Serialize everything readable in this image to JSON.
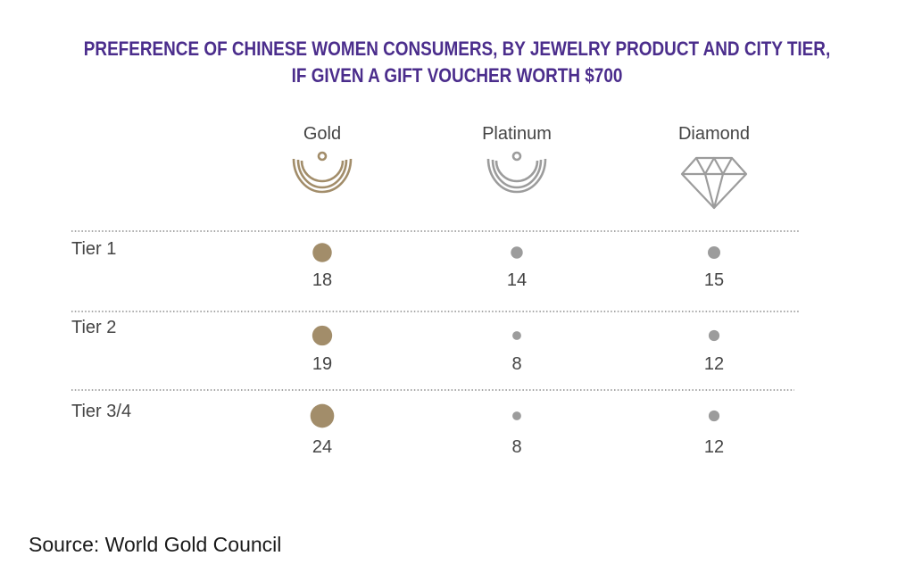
{
  "title": {
    "line1": "PREFERENCE OF CHINESE WOMEN CONSUMERS, BY JEWELRY PRODUCT AND CITY TIER,",
    "line2": "IF GIVEN A GIFT VOUCHER WORTH $700"
  },
  "source": "Source: World Gold Council",
  "colors": {
    "title": "#4b2d8c",
    "gold": "#a28d6a",
    "silver": "#9c9c9c",
    "text": "#444444"
  },
  "icons": {
    "Gold": "gold-necklace-icon",
    "Platinum": "platinum-necklace-icon",
    "Diamond": "diamond-icon"
  },
  "chart_data": {
    "type": "bubble-table",
    "title": "PREFERENCE OF CHINESE WOMEN CONSUMERS, BY JEWELRY PRODUCT AND CITY TIER, IF GIVEN A GIFT VOUCHER WORTH $700",
    "columns": [
      "Gold",
      "Platinum",
      "Diamond"
    ],
    "rows": [
      "Tier 1",
      "Tier 2",
      "Tier 3/4"
    ],
    "values": [
      [
        18,
        14,
        15
      ],
      [
        19,
        8,
        12
      ],
      [
        24,
        8,
        12
      ]
    ]
  }
}
